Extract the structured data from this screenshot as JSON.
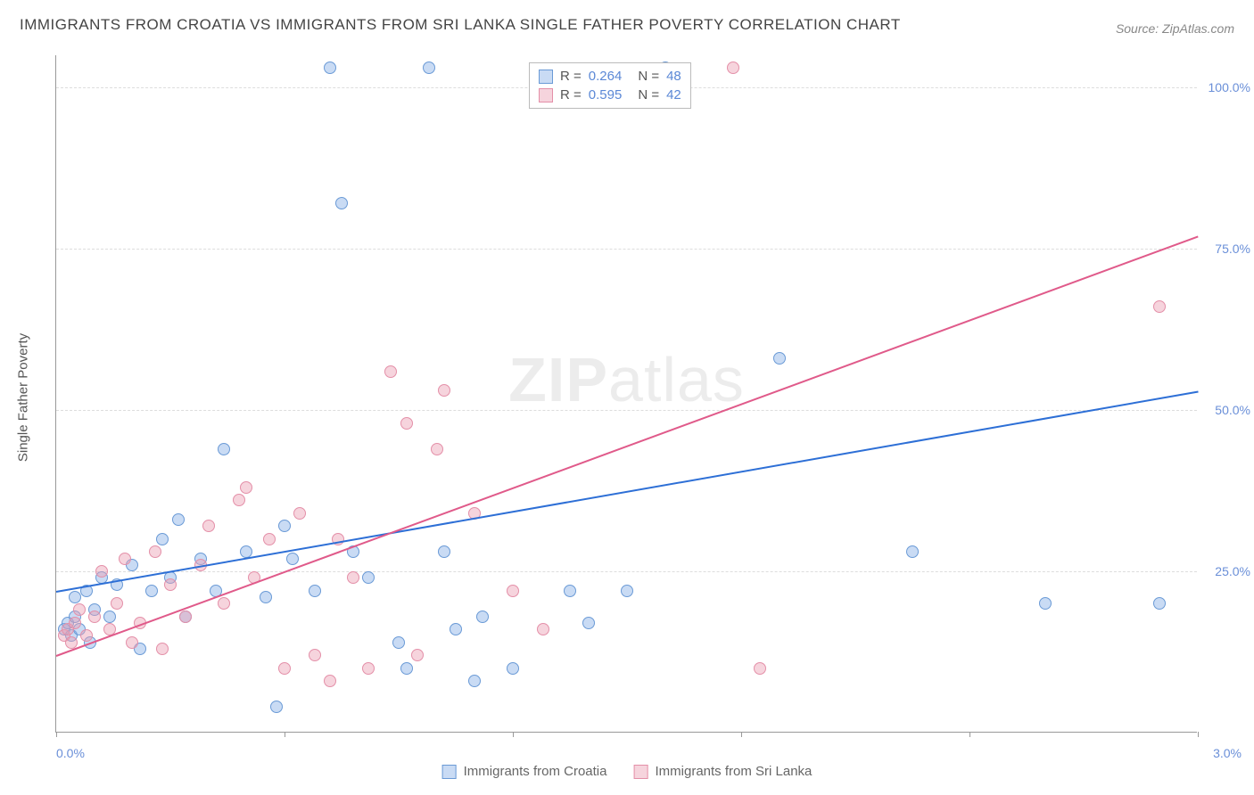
{
  "title": "IMMIGRANTS FROM CROATIA VS IMMIGRANTS FROM SRI LANKA SINGLE FATHER POVERTY CORRELATION CHART",
  "source": "Source: ZipAtlas.com",
  "watermark_bold": "ZIP",
  "watermark_rest": "atlas",
  "y_axis_title": "Single Father Poverty",
  "chart": {
    "type": "scatter",
    "xlim": [
      0.0,
      3.0
    ],
    "ylim": [
      0,
      105
    ],
    "x_ticks": [
      0.0,
      0.6,
      1.2,
      1.8,
      2.4,
      3.0
    ],
    "x_tick_labels": {
      "0": "0.0%",
      "3": "3.0%"
    },
    "y_gridlines": [
      25,
      50,
      75,
      100
    ],
    "y_tick_labels": {
      "25": "25.0%",
      "50": "50.0%",
      "75": "75.0%",
      "100": "100.0%"
    },
    "background_color": "#ffffff",
    "grid_color": "#dddddd",
    "axis_color": "#999999",
    "label_color": "#6a8fd8",
    "marker_radius": 7,
    "series": [
      {
        "name": "Immigrants from Croatia",
        "fill": "rgba(135,175,230,0.45)",
        "stroke": "#6a9ad6",
        "line_color": "#2d6fd6",
        "R": "0.264",
        "N": "48",
        "trend": {
          "x1": 0.0,
          "y1": 22.0,
          "x2": 3.0,
          "y2": 53.0
        },
        "points": [
          [
            0.02,
            16
          ],
          [
            0.03,
            17
          ],
          [
            0.04,
            15
          ],
          [
            0.05,
            18
          ],
          [
            0.05,
            21
          ],
          [
            0.06,
            16
          ],
          [
            0.08,
            22
          ],
          [
            0.09,
            14
          ],
          [
            0.1,
            19
          ],
          [
            0.12,
            24
          ],
          [
            0.14,
            18
          ],
          [
            0.16,
            23
          ],
          [
            0.2,
            26
          ],
          [
            0.22,
            13
          ],
          [
            0.25,
            22
          ],
          [
            0.28,
            30
          ],
          [
            0.3,
            24
          ],
          [
            0.32,
            33
          ],
          [
            0.34,
            18
          ],
          [
            0.38,
            27
          ],
          [
            0.42,
            22
          ],
          [
            0.44,
            44
          ],
          [
            0.5,
            28
          ],
          [
            0.55,
            21
          ],
          [
            0.58,
            4
          ],
          [
            0.6,
            32
          ],
          [
            0.62,
            27
          ],
          [
            0.68,
            22
          ],
          [
            0.72,
            103
          ],
          [
            0.75,
            82
          ],
          [
            0.78,
            28
          ],
          [
            0.82,
            24
          ],
          [
            0.9,
            14
          ],
          [
            0.92,
            10
          ],
          [
            0.98,
            103
          ],
          [
            1.02,
            28
          ],
          [
            1.05,
            16
          ],
          [
            1.1,
            8
          ],
          [
            1.12,
            18
          ],
          [
            1.2,
            10
          ],
          [
            1.35,
            22
          ],
          [
            1.4,
            17
          ],
          [
            1.5,
            22
          ],
          [
            1.6,
            103
          ],
          [
            1.9,
            58
          ],
          [
            2.25,
            28
          ],
          [
            2.6,
            20
          ],
          [
            2.9,
            20
          ]
        ]
      },
      {
        "name": "Immigrants from Sri Lanka",
        "fill": "rgba(235,160,180,0.45)",
        "stroke": "#e48fa8",
        "line_color": "#e05a8a",
        "R": "0.595",
        "N": "42",
        "trend": {
          "x1": 0.0,
          "y1": 12.0,
          "x2": 3.0,
          "y2": 77.0
        },
        "points": [
          [
            0.02,
            15
          ],
          [
            0.03,
            16
          ],
          [
            0.04,
            14
          ],
          [
            0.05,
            17
          ],
          [
            0.06,
            19
          ],
          [
            0.08,
            15
          ],
          [
            0.1,
            18
          ],
          [
            0.12,
            25
          ],
          [
            0.14,
            16
          ],
          [
            0.16,
            20
          ],
          [
            0.18,
            27
          ],
          [
            0.2,
            14
          ],
          [
            0.22,
            17
          ],
          [
            0.26,
            28
          ],
          [
            0.28,
            13
          ],
          [
            0.3,
            23
          ],
          [
            0.34,
            18
          ],
          [
            0.38,
            26
          ],
          [
            0.4,
            32
          ],
          [
            0.44,
            20
          ],
          [
            0.48,
            36
          ],
          [
            0.5,
            38
          ],
          [
            0.52,
            24
          ],
          [
            0.56,
            30
          ],
          [
            0.6,
            10
          ],
          [
            0.64,
            34
          ],
          [
            0.68,
            12
          ],
          [
            0.72,
            8
          ],
          [
            0.74,
            30
          ],
          [
            0.78,
            24
          ],
          [
            0.82,
            10
          ],
          [
            0.88,
            56
          ],
          [
            0.92,
            48
          ],
          [
            0.95,
            12
          ],
          [
            1.0,
            44
          ],
          [
            1.02,
            53
          ],
          [
            1.1,
            34
          ],
          [
            1.2,
            22
          ],
          [
            1.28,
            16
          ],
          [
            1.78,
            103
          ],
          [
            1.85,
            10
          ],
          [
            2.9,
            66
          ]
        ]
      }
    ]
  },
  "stats_legend": {
    "r_label": "R =",
    "n_label": "N ="
  },
  "bottom_legend": {
    "items": [
      "Immigrants from Croatia",
      "Immigrants from Sri Lanka"
    ]
  }
}
